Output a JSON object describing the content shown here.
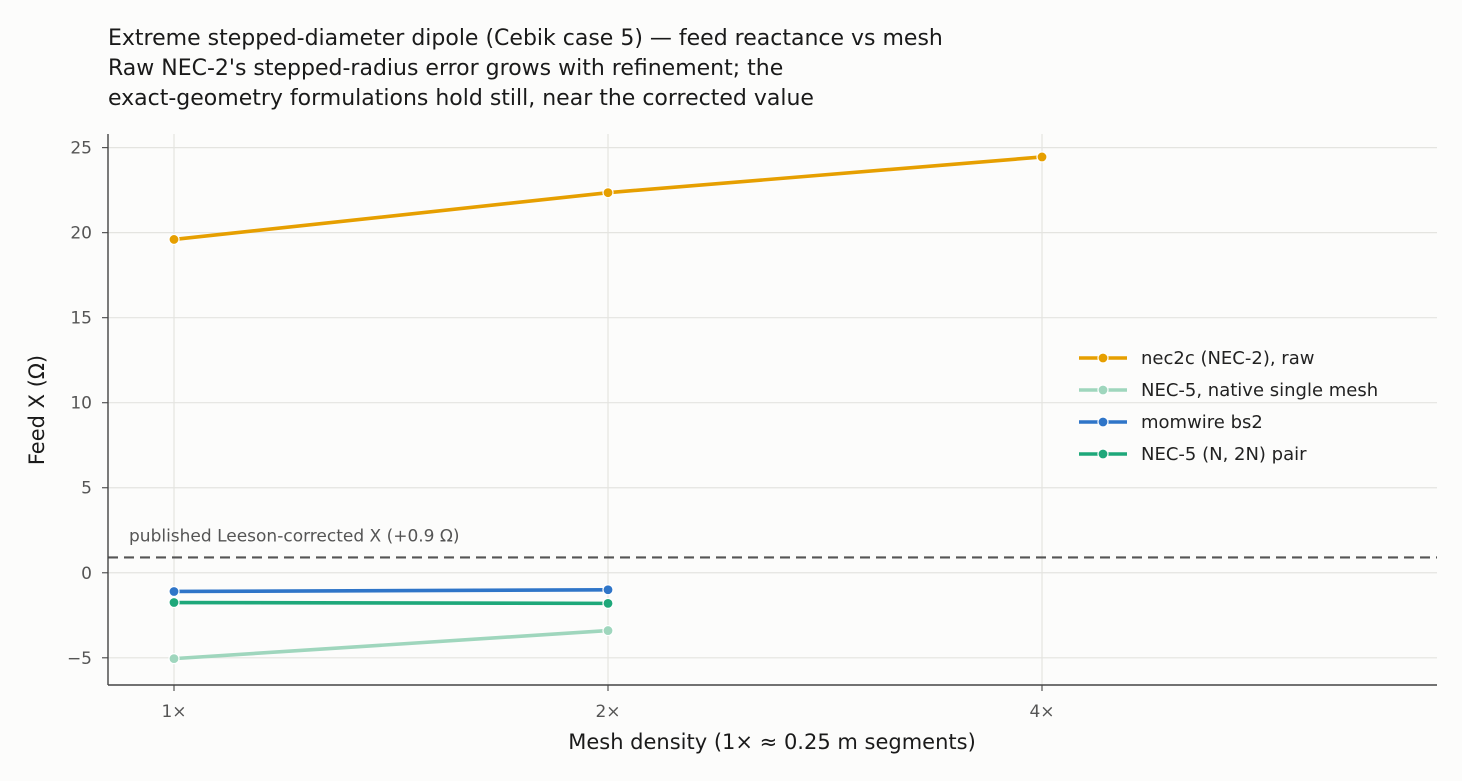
{
  "chart_data": {
    "type": "line",
    "title": "Extreme stepped-diameter dipole (Cebik case 5) — feed reactance vs mesh",
    "subtitle_lines": [
      "Raw NEC-2's stepped-radius error grows with refinement; the",
      "exact-geometry formulations hold still, near the corrected value"
    ],
    "xlabel": "Mesh density (1× ≈ 0.25 m segments)",
    "ylabel": "Feed X (Ω)",
    "categories": [
      "1×",
      "2×",
      "4×"
    ],
    "y_ticks": [
      25,
      20,
      15,
      10,
      5,
      0,
      -5
    ],
    "y_tick_labels": [
      "25",
      "20",
      "15",
      "10",
      "5",
      "0",
      "−5"
    ],
    "ylim": [
      -6.6,
      25.8
    ],
    "grid": true,
    "legend_position": "right",
    "series": [
      {
        "name": "nec2c (NEC-2), raw",
        "color": "#e69f00",
        "values": [
          19.6,
          22.35,
          24.45
        ]
      },
      {
        "name": "NEC-5, native single mesh",
        "color": "#9fd6bd",
        "values": [
          -5.05,
          -3.4,
          null
        ]
      },
      {
        "name": "momwire bs2",
        "color": "#2f75c8",
        "values": [
          -1.1,
          -1.0,
          null
        ]
      },
      {
        "name": "NEC-5 (N, 2N) pair",
        "color": "#1ea87a",
        "values": [
          -1.75,
          -1.8,
          null
        ]
      }
    ],
    "reference_line": {
      "value": 0.9,
      "label": "published Leeson-corrected X (+0.9 Ω)",
      "color": "#555555"
    }
  }
}
